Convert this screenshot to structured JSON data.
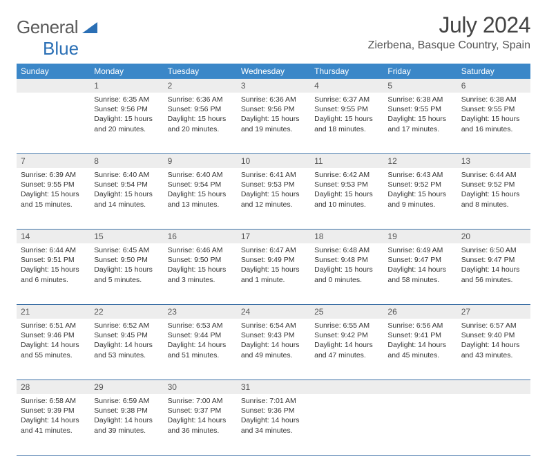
{
  "logo": {
    "general": "General",
    "blue": "Blue"
  },
  "header": {
    "title": "July 2024",
    "location": "Zierbena, Basque Country, Spain"
  },
  "colors": {
    "header_bg": "#3b87c8",
    "header_fg": "#ffffff",
    "daynum_bg": "#ededed",
    "divider": "#3b6fa5",
    "logo_gray": "#5a5a5a",
    "logo_blue": "#2a6fb5"
  },
  "daysOfWeek": [
    "Sunday",
    "Monday",
    "Tuesday",
    "Wednesday",
    "Thursday",
    "Friday",
    "Saturday"
  ],
  "weeks": [
    {
      "nums": [
        "",
        "1",
        "2",
        "3",
        "4",
        "5",
        "6"
      ],
      "cells": [
        null,
        {
          "sunrise": "6:35 AM",
          "sunset": "9:56 PM",
          "daylight": "15 hours and 20 minutes."
        },
        {
          "sunrise": "6:36 AM",
          "sunset": "9:56 PM",
          "daylight": "15 hours and 20 minutes."
        },
        {
          "sunrise": "6:36 AM",
          "sunset": "9:56 PM",
          "daylight": "15 hours and 19 minutes."
        },
        {
          "sunrise": "6:37 AM",
          "sunset": "9:55 PM",
          "daylight": "15 hours and 18 minutes."
        },
        {
          "sunrise": "6:38 AM",
          "sunset": "9:55 PM",
          "daylight": "15 hours and 17 minutes."
        },
        {
          "sunrise": "6:38 AM",
          "sunset": "9:55 PM",
          "daylight": "15 hours and 16 minutes."
        }
      ]
    },
    {
      "nums": [
        "7",
        "8",
        "9",
        "10",
        "11",
        "12",
        "13"
      ],
      "cells": [
        {
          "sunrise": "6:39 AM",
          "sunset": "9:55 PM",
          "daylight": "15 hours and 15 minutes."
        },
        {
          "sunrise": "6:40 AM",
          "sunset": "9:54 PM",
          "daylight": "15 hours and 14 minutes."
        },
        {
          "sunrise": "6:40 AM",
          "sunset": "9:54 PM",
          "daylight": "15 hours and 13 minutes."
        },
        {
          "sunrise": "6:41 AM",
          "sunset": "9:53 PM",
          "daylight": "15 hours and 12 minutes."
        },
        {
          "sunrise": "6:42 AM",
          "sunset": "9:53 PM",
          "daylight": "15 hours and 10 minutes."
        },
        {
          "sunrise": "6:43 AM",
          "sunset": "9:52 PM",
          "daylight": "15 hours and 9 minutes."
        },
        {
          "sunrise": "6:44 AM",
          "sunset": "9:52 PM",
          "daylight": "15 hours and 8 minutes."
        }
      ]
    },
    {
      "nums": [
        "14",
        "15",
        "16",
        "17",
        "18",
        "19",
        "20"
      ],
      "cells": [
        {
          "sunrise": "6:44 AM",
          "sunset": "9:51 PM",
          "daylight": "15 hours and 6 minutes."
        },
        {
          "sunrise": "6:45 AM",
          "sunset": "9:50 PM",
          "daylight": "15 hours and 5 minutes."
        },
        {
          "sunrise": "6:46 AM",
          "sunset": "9:50 PM",
          "daylight": "15 hours and 3 minutes."
        },
        {
          "sunrise": "6:47 AM",
          "sunset": "9:49 PM",
          "daylight": "15 hours and 1 minute."
        },
        {
          "sunrise": "6:48 AM",
          "sunset": "9:48 PM",
          "daylight": "15 hours and 0 minutes."
        },
        {
          "sunrise": "6:49 AM",
          "sunset": "9:47 PM",
          "daylight": "14 hours and 58 minutes."
        },
        {
          "sunrise": "6:50 AM",
          "sunset": "9:47 PM",
          "daylight": "14 hours and 56 minutes."
        }
      ]
    },
    {
      "nums": [
        "21",
        "22",
        "23",
        "24",
        "25",
        "26",
        "27"
      ],
      "cells": [
        {
          "sunrise": "6:51 AM",
          "sunset": "9:46 PM",
          "daylight": "14 hours and 55 minutes."
        },
        {
          "sunrise": "6:52 AM",
          "sunset": "9:45 PM",
          "daylight": "14 hours and 53 minutes."
        },
        {
          "sunrise": "6:53 AM",
          "sunset": "9:44 PM",
          "daylight": "14 hours and 51 minutes."
        },
        {
          "sunrise": "6:54 AM",
          "sunset": "9:43 PM",
          "daylight": "14 hours and 49 minutes."
        },
        {
          "sunrise": "6:55 AM",
          "sunset": "9:42 PM",
          "daylight": "14 hours and 47 minutes."
        },
        {
          "sunrise": "6:56 AM",
          "sunset": "9:41 PM",
          "daylight": "14 hours and 45 minutes."
        },
        {
          "sunrise": "6:57 AM",
          "sunset": "9:40 PM",
          "daylight": "14 hours and 43 minutes."
        }
      ]
    },
    {
      "nums": [
        "28",
        "29",
        "30",
        "31",
        "",
        "",
        ""
      ],
      "cells": [
        {
          "sunrise": "6:58 AM",
          "sunset": "9:39 PM",
          "daylight": "14 hours and 41 minutes."
        },
        {
          "sunrise": "6:59 AM",
          "sunset": "9:38 PM",
          "daylight": "14 hours and 39 minutes."
        },
        {
          "sunrise": "7:00 AM",
          "sunset": "9:37 PM",
          "daylight": "14 hours and 36 minutes."
        },
        {
          "sunrise": "7:01 AM",
          "sunset": "9:36 PM",
          "daylight": "14 hours and 34 minutes."
        },
        null,
        null,
        null
      ]
    }
  ],
  "labels": {
    "sunrise": "Sunrise:",
    "sunset": "Sunset:",
    "daylight": "Daylight:"
  }
}
